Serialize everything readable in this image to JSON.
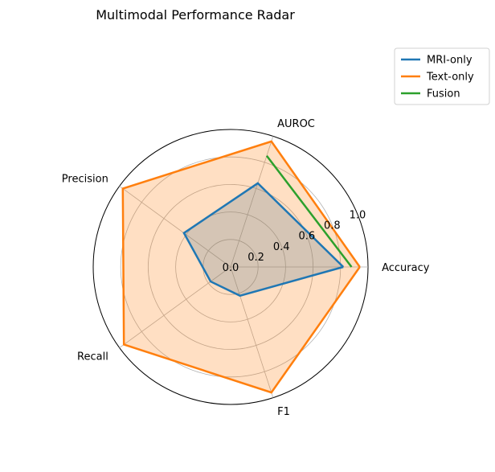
{
  "chart_data": {
    "type": "radar",
    "title": "Multimodal Performance Radar",
    "axes": [
      "Accuracy",
      "AUROC",
      "Precision",
      "Recall",
      "F1"
    ],
    "rlim": [
      0,
      1.0
    ],
    "rticks": [
      0.0,
      0.2,
      0.4,
      0.6,
      0.8,
      1.0
    ],
    "rtick_labels": [
      "0.0",
      "0.2",
      "0.4",
      "0.6",
      "0.8",
      "1.0"
    ],
    "grid": true,
    "legend_position": "top-right",
    "series": [
      {
        "name": "MRI-only",
        "color": "#1f77b4",
        "filled": true,
        "values": [
          0.82,
          0.64,
          0.42,
          0.18,
          0.22
        ]
      },
      {
        "name": "Text-only",
        "color": "#ff7f0e",
        "filled": true,
        "values": [
          0.94,
          0.96,
          0.97,
          0.96,
          0.96
        ]
      },
      {
        "name": "Fusion",
        "color": "#2ca02c",
        "filled": false,
        "values": [
          0.88,
          0.85,
          null,
          null,
          null
        ]
      }
    ]
  }
}
